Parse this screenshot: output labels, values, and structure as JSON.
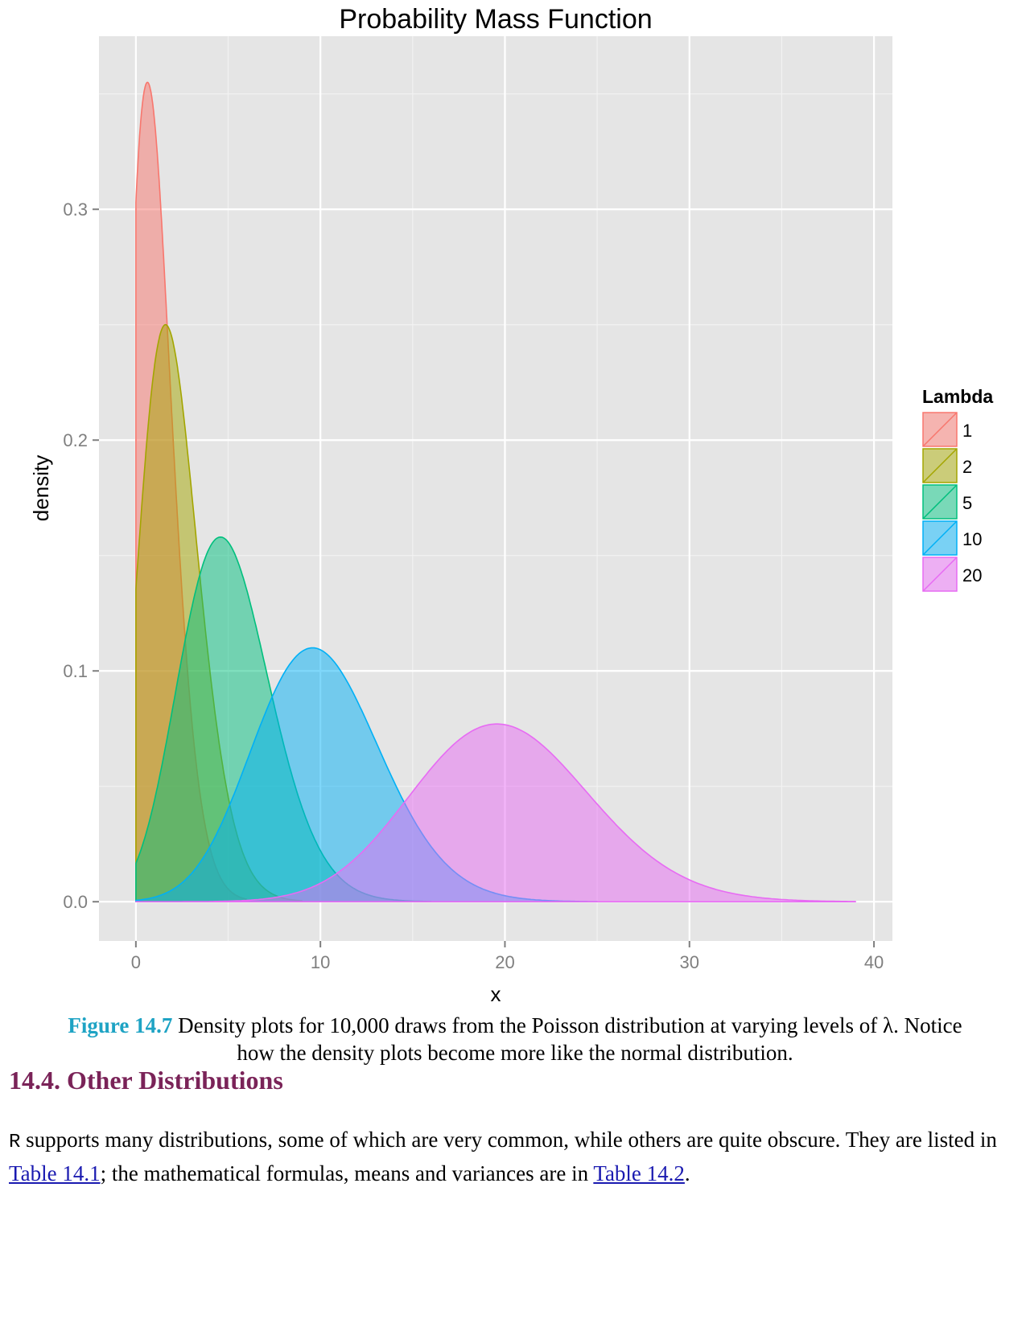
{
  "chart_data": {
    "type": "area",
    "title": "Probability Mass Function",
    "xlabel": "x",
    "ylabel": "density",
    "xlim": [
      -2,
      41
    ],
    "ylim": [
      -0.017,
      0.375
    ],
    "x_ticks": [
      0,
      10,
      20,
      30,
      40
    ],
    "y_ticks": [
      0.0,
      0.1,
      0.2,
      0.3
    ],
    "x_tick_labels": [
      "0",
      "10",
      "20",
      "30",
      "40"
    ],
    "y_tick_labels": [
      "0.0",
      "0.1",
      "0.2",
      "0.3"
    ],
    "grid": true,
    "legend": {
      "title": "Lambda",
      "placement": "right"
    },
    "series": [
      {
        "name": "1",
        "lambda": 1,
        "color": "#f8766d",
        "x_range": [
          0,
          6
        ],
        "peak_x": 0.7,
        "peak_y": 0.355
      },
      {
        "name": "2",
        "lambda": 2,
        "color": "#a3a500",
        "x_range": [
          0,
          9
        ],
        "peak_x": 1.6,
        "peak_y": 0.25
      },
      {
        "name": "5",
        "lambda": 5,
        "color": "#00bf7d",
        "x_range": [
          0,
          16
        ],
        "peak_x": 4.7,
        "peak_y": 0.158
      },
      {
        "name": "10",
        "lambda": 10,
        "color": "#00b0f6",
        "x_range": [
          0,
          25
        ],
        "peak_x": 9.7,
        "peak_y": 0.11
      },
      {
        "name": "20",
        "lambda": 20,
        "color": "#e76bf3",
        "x_range": [
          0,
          39
        ],
        "peak_x": 19.7,
        "peak_y": 0.077
      }
    ]
  },
  "caption": {
    "label": "Figure 14.7",
    "text": "Density plots for 10,000 draws from the Poisson distribution at varying levels of λ. Notice how the density plots become more like the normal distribution."
  },
  "section": {
    "heading": "14.4. Other Distributions"
  },
  "paragraph": {
    "code": "R",
    "text_1": " supports many distributions, some of which are very common, while others are quite obscure. They are listed in ",
    "link_1": "Table 14.1",
    "text_2": "; the mathematical formulas, means and variances are in ",
    "link_2": "Table 14.2",
    "text_3": "."
  }
}
